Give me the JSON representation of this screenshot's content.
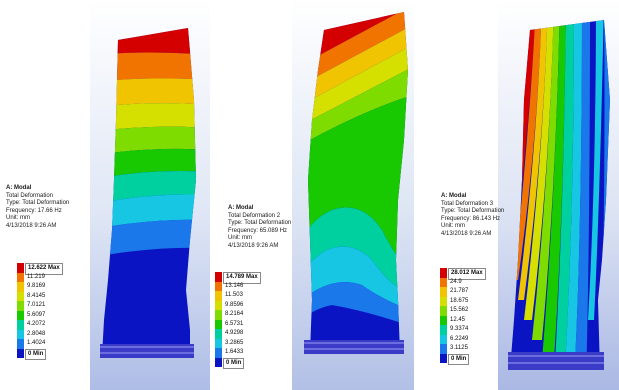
{
  "panels": [
    {
      "info": {
        "title": "A: Modal",
        "result": "Total Deformation",
        "type": "Type: Total Deformation",
        "frequency": "Frequency: 17.66 Hz",
        "unit": "Unit: mm",
        "date": "4/13/2018 9:26 AM"
      },
      "legend": [
        "12.622 Max",
        "11.219",
        "9.8169",
        "8.4145",
        "7.0121",
        "5.6097",
        "4.2072",
        "2.8048",
        "1.4024",
        "0 Min"
      ]
    },
    {
      "info": {
        "title": "A: Modal",
        "result": "Total Deformation 2",
        "type": "Type: Total Deformation",
        "frequency": "Frequency: 65.089 Hz",
        "unit": "Unit: mm",
        "date": "4/13/2018 9:26 AM"
      },
      "legend": [
        "14.789 Max",
        "13.146",
        "11.503",
        "9.8596",
        "8.2164",
        "6.5731",
        "4.9298",
        "3.2865",
        "1.6433",
        "0 Min"
      ]
    },
    {
      "info": {
        "title": "A: Modal",
        "result": "Total Deformation 3",
        "type": "Type: Total Deformation",
        "frequency": "Frequency: 86.143 Hz",
        "unit": "Unit: mm",
        "date": "4/13/2018 9:26 AM"
      },
      "legend": [
        "28.012 Max",
        "24.9",
        "21.787",
        "18.675",
        "15.562",
        "12.45",
        "9.3374",
        "6.2249",
        "3.1125",
        "0 Min"
      ]
    }
  ],
  "colors": {
    "scale": [
      "#d40000",
      "#f27400",
      "#f0c400",
      "#d6e000",
      "#7fdc00",
      "#18c800",
      "#00d0a0",
      "#16c6e2",
      "#1a78ea",
      "#0a14c2"
    ],
    "base": "#3a3cc8"
  }
}
